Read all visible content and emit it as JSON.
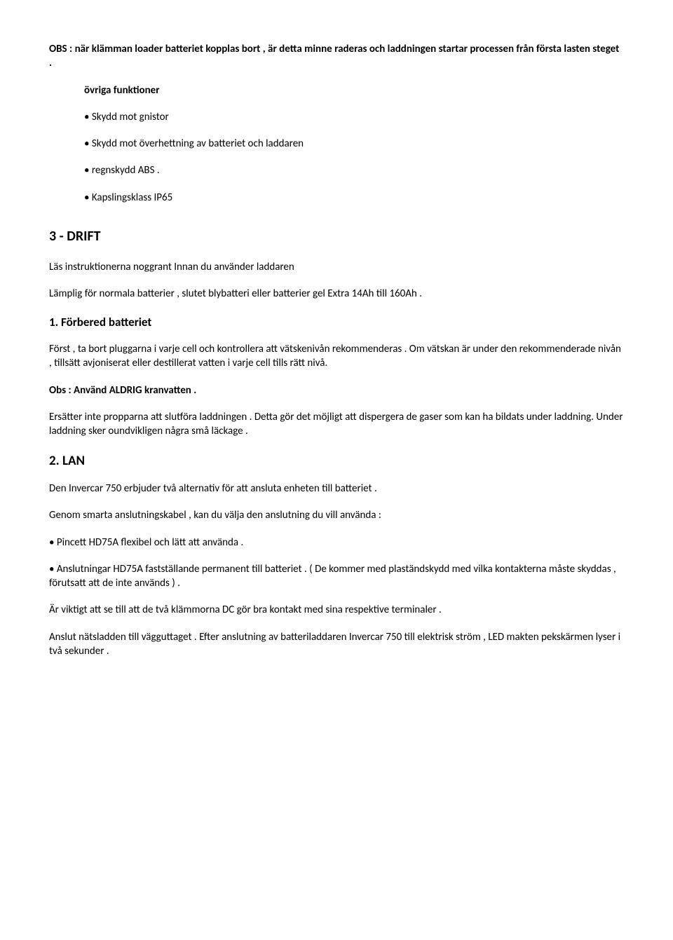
{
  "intro_bold": "OBS : när klämman loader batteriet kopplas bort , är detta minne raderas och laddningen startar processen från första lasten steget .",
  "ovriga": {
    "title": "övriga funktioner",
    "b1": "• Skydd mot gnistor",
    "b2": "• Skydd mot överhettning av batteriet och laddaren",
    "b3": "• regnskydd ABS .",
    "b4": "• Kapslingsklass IP65"
  },
  "drift": {
    "title": "3 - DRIFT",
    "p1": "Läs instruktionerna noggrant Innan du använder laddaren",
    "p2": "Lämplig för normala batterier , slutet blybatteri eller batterier gel Extra 14Ah till 160Ah ."
  },
  "s1": {
    "title": "1. Förbered batteriet",
    "p1": "Först , ta bort pluggarna i varje cell och kontrollera att vätskenivån rekommenderas . Om vätskan är under den rekommenderade nivån , tillsätt avjoniserat eller destillerat vatten i varje cell tills rätt nivå.",
    "p2": "Obs : Använd ALDRIG kranvatten .",
    "p3a": "Ersätter inte propparna att slutföra laddningen . Detta gör det möjligt att dispergera de gaser som kan ha bildats under laddning. ",
    "p3b": "Under laddning sker oundvikligen några små läckage ."
  },
  "s2": {
    "title": "2. LAN",
    "p1": "Den Invercar 750 erbjuder två alternativ för att ansluta enheten till batteriet .",
    "p2": "Genom smarta anslutningskabel , kan du välja den anslutning du vill använda :",
    "b1": "• Pincett HD75A flexibel och lätt att använda .",
    "b2": "• Anslutningar HD75A fastställande permanent till batteriet . ( De kommer med plaständskydd med vilka kontakterna måste skyddas , förutsatt att de inte används ) .",
    "p3": "Är viktigt att se till att de två klämmorna DC gör bra kontakt med sina respektive terminaler .",
    "p4a": "Anslut nätsladden till vägguttaget . ",
    "p4b": "Efter anslutning av batteriladdaren Invercar 750 till elektrisk ström , LED makten pekskärmen lyser i två sekunder ."
  }
}
